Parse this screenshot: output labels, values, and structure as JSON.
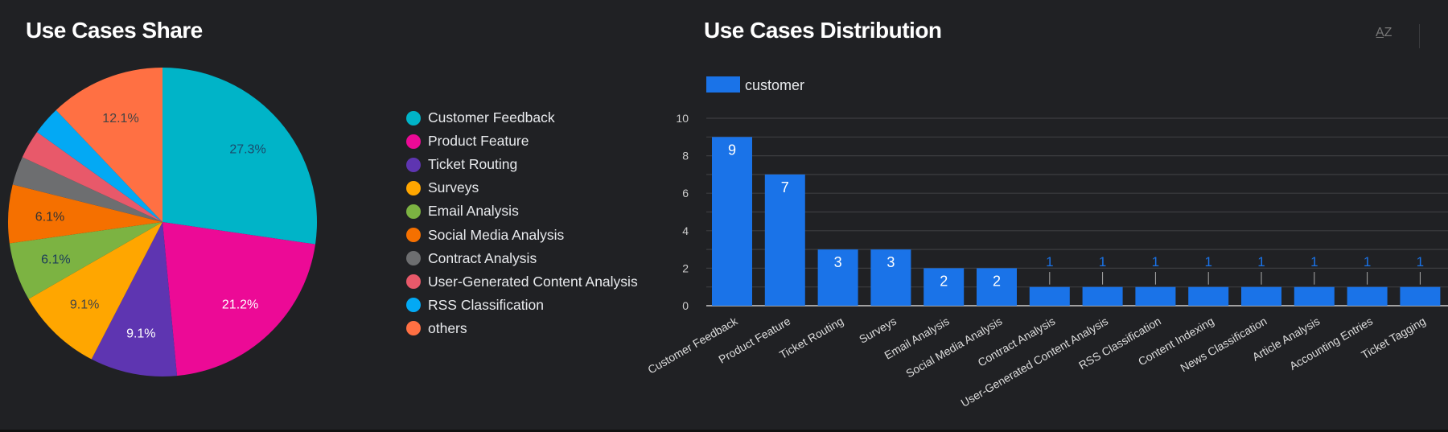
{
  "pie": {
    "title": "Use Cases Share",
    "chart_data": {
      "type": "pie",
      "title": "Use Cases Share",
      "slices": [
        {
          "label": "Customer Feedback",
          "value": 27.3,
          "pct_label": "27.3%",
          "color": "#00b4c8"
        },
        {
          "label": "Product Feature",
          "value": 21.2,
          "pct_label": "21.2%",
          "color": "#ec0a96"
        },
        {
          "label": "Ticket Routing",
          "value": 9.1,
          "pct_label": "9.1%",
          "color": "#5e35b1"
        },
        {
          "label": "Surveys",
          "value": 9.1,
          "pct_label": "9.1%",
          "color": "#ffa600"
        },
        {
          "label": "Email Analysis",
          "value": 6.1,
          "pct_label": "6.1%",
          "color": "#7cb342"
        },
        {
          "label": "Social Media Analysis",
          "value": 6.1,
          "pct_label": "6.1%",
          "color": "#f57000"
        },
        {
          "label": "Contract Analysis",
          "value": 3.0,
          "pct_label": "",
          "color": "#6d6e70"
        },
        {
          "label": "User-Generated Content Analysis",
          "value": 3.0,
          "pct_label": "",
          "color": "#e8596a"
        },
        {
          "label": "RSS Classification",
          "value": 3.0,
          "pct_label": "",
          "color": "#03a9f4"
        },
        {
          "label": "others",
          "value": 12.1,
          "pct_label": "12.1%",
          "color": "#ff7043"
        }
      ],
      "legend": "right"
    }
  },
  "bar": {
    "title": "Use Cases Distribution",
    "sort_icon": "sort-az-icon",
    "chart_data": {
      "type": "bar",
      "title": "Use Cases Distribution",
      "categories": [
        "Customer Feedback",
        "Product Feature",
        "Ticket Routing",
        "Surveys",
        "Email Analysis",
        "Social Media Analysis",
        "Contract Analysis",
        "User-Generated Content Analysis",
        "RSS Classification",
        "Content Indexing",
        "News Classification",
        "Article Analysis",
        "Accounting Entries",
        "Ticket Tagging"
      ],
      "series": [
        {
          "name": "customer",
          "values": [
            9,
            7,
            3,
            3,
            2,
            2,
            1,
            1,
            1,
            1,
            1,
            1,
            1,
            1
          ],
          "color": "#1a73e8"
        }
      ],
      "yticks": [
        "0",
        "2",
        "4",
        "6",
        "8",
        "10"
      ],
      "ylim": [
        0,
        10
      ],
      "grid": true,
      "legend": "top-left",
      "xlabel": "",
      "ylabel": ""
    }
  }
}
